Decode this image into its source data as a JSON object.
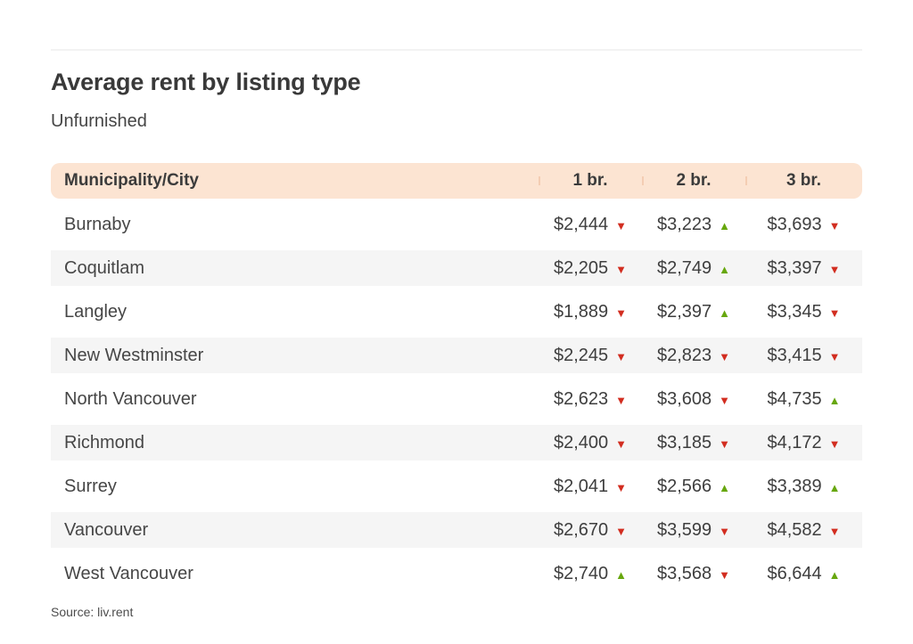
{
  "colors": {
    "header_bg": "#fce4d2",
    "header_divider": "#f4cdb3",
    "row_stripe": "#f5f5f5",
    "trend_up_green": "#67a70e",
    "trend_down_red": "#d22d20"
  },
  "chart_data": {
    "type": "table",
    "title": "Average rent by listing type",
    "subtitle": "Unfurnished",
    "columns": [
      "Municipality/City",
      "1 br.",
      "2 br.",
      "3 br."
    ],
    "rows": [
      {
        "municipality": "Burnaby",
        "values": [
          2444,
          3223,
          3693
        ],
        "trends": [
          "down",
          "up",
          "down"
        ]
      },
      {
        "municipality": "Coquitlam",
        "values": [
          2205,
          2749,
          3397
        ],
        "trends": [
          "down",
          "up",
          "down"
        ]
      },
      {
        "municipality": "Langley",
        "values": [
          1889,
          2397,
          3345
        ],
        "trends": [
          "down",
          "up",
          "down"
        ]
      },
      {
        "municipality": "New Westminster",
        "values": [
          2245,
          2823,
          3415
        ],
        "trends": [
          "down",
          "down",
          "down"
        ]
      },
      {
        "municipality": "North Vancouver",
        "values": [
          2623,
          3608,
          4735
        ],
        "trends": [
          "down",
          "down",
          "up"
        ]
      },
      {
        "municipality": "Richmond",
        "values": [
          2400,
          3185,
          4172
        ],
        "trends": [
          "down",
          "down",
          "down"
        ]
      },
      {
        "municipality": "Surrey",
        "values": [
          2041,
          2566,
          3389
        ],
        "trends": [
          "down",
          "up",
          "up"
        ]
      },
      {
        "municipality": "Vancouver",
        "values": [
          2670,
          3599,
          4582
        ],
        "trends": [
          "down",
          "down",
          "down"
        ]
      },
      {
        "municipality": "West Vancouver",
        "values": [
          2740,
          3568,
          6644
        ],
        "trends": [
          "up",
          "down",
          "up"
        ]
      }
    ],
    "source": "Source: liv.rent",
    "legend_position": "none",
    "grid": "row-stripes"
  }
}
